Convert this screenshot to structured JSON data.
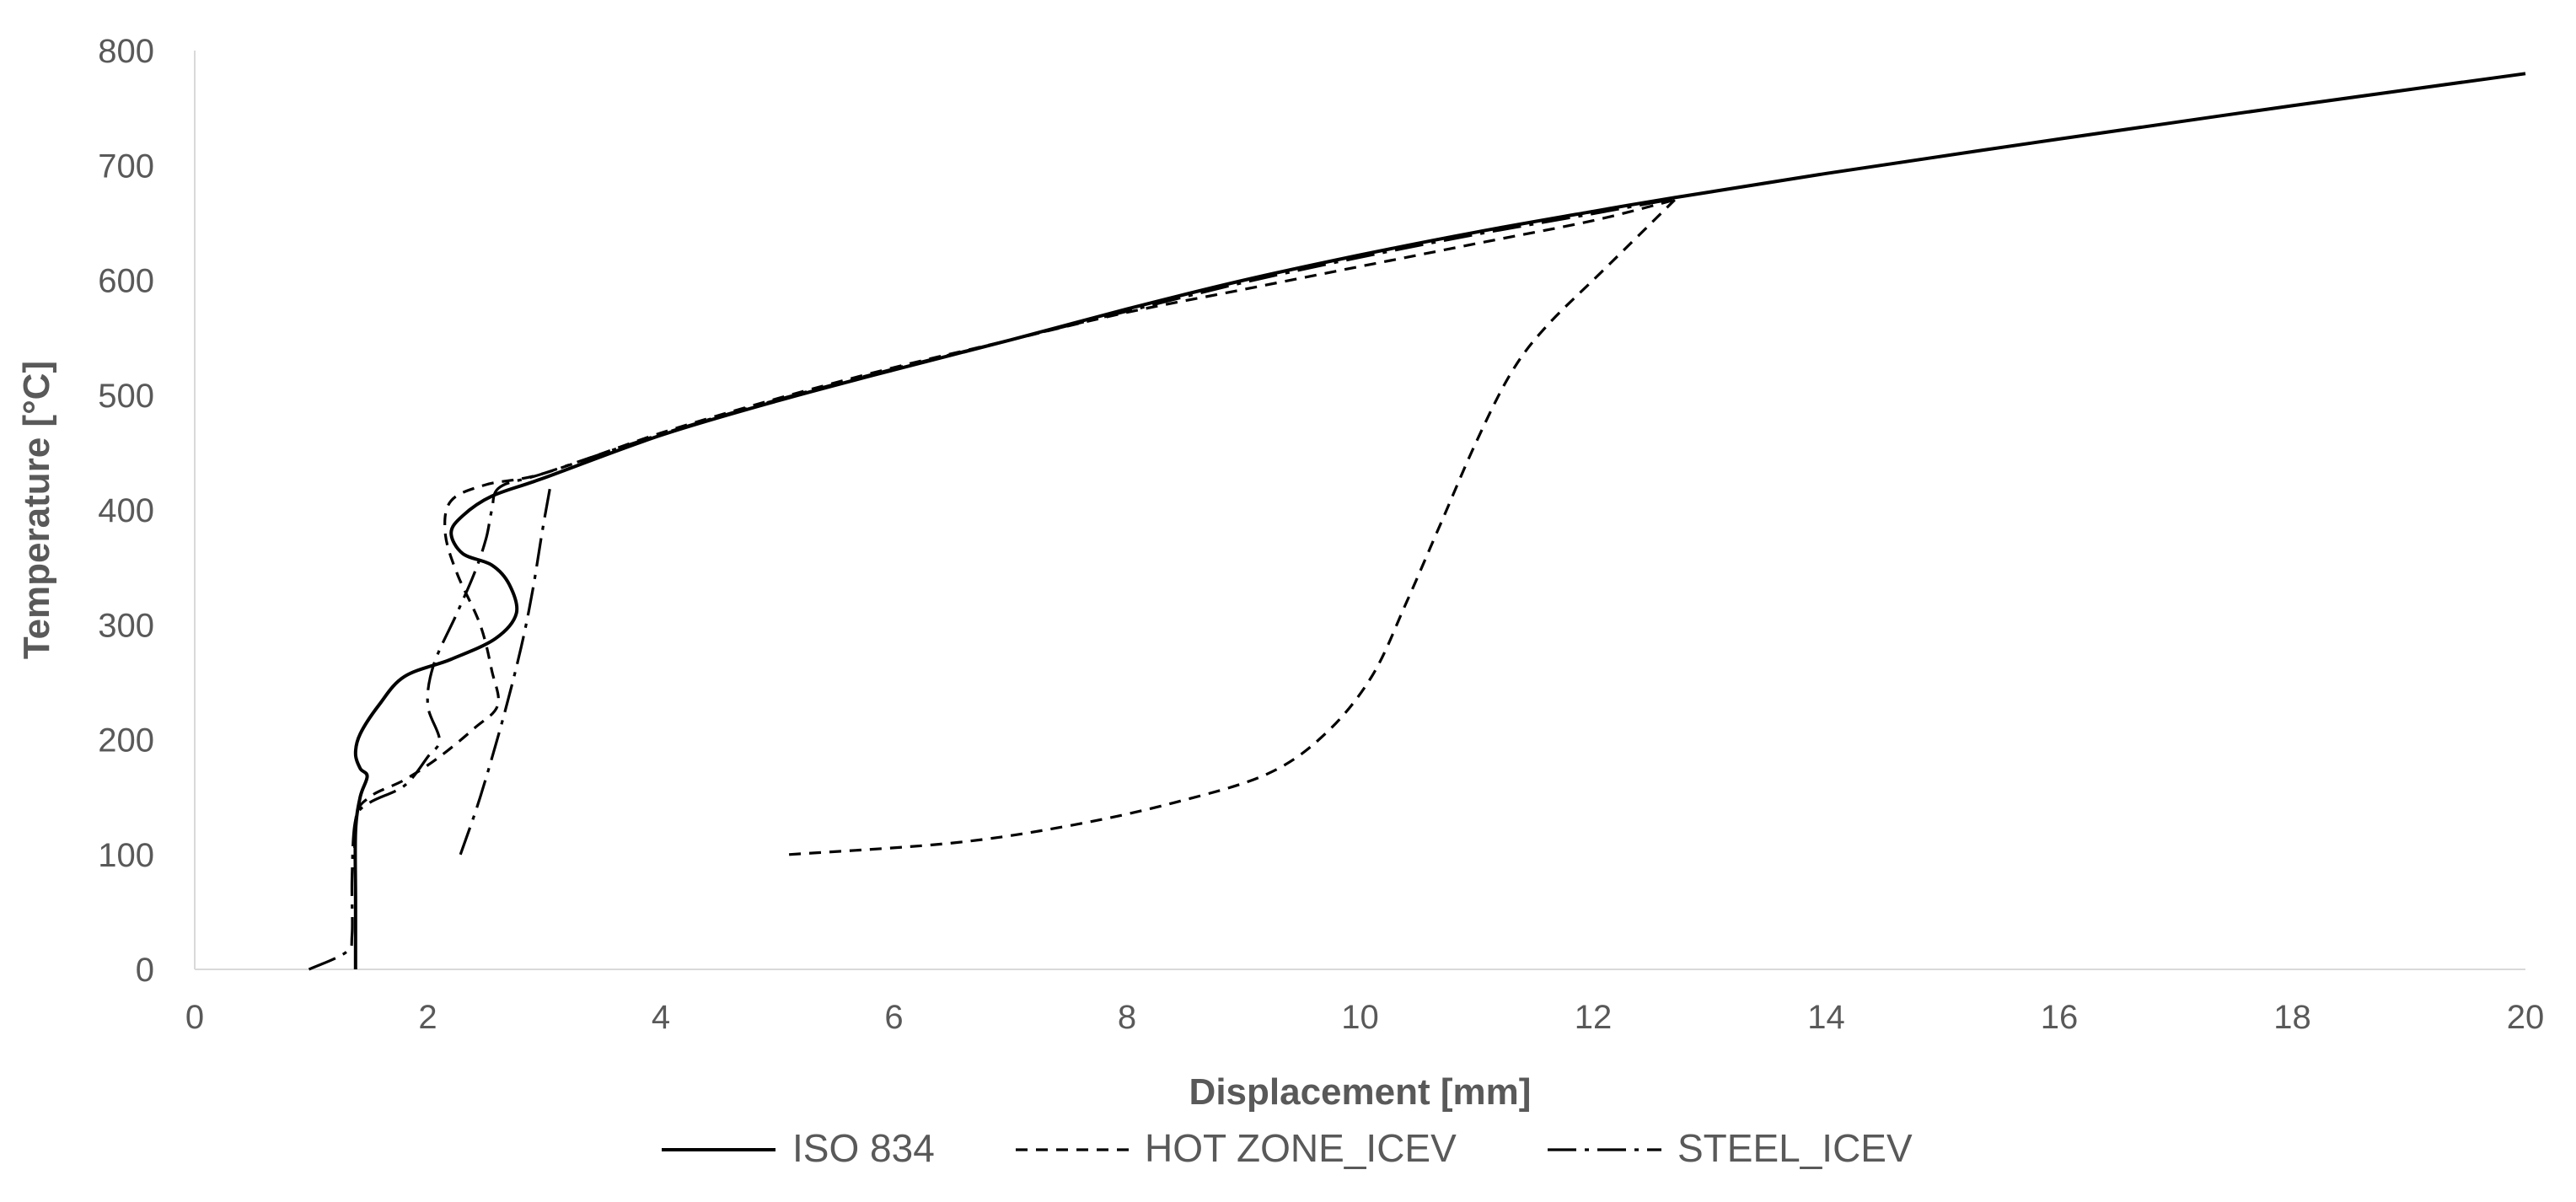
{
  "chart_data": {
    "type": "line",
    "title": "",
    "xlabel": "Displacement [mm]",
    "ylabel": "Temperature [°C]",
    "xlim": [
      0,
      20
    ],
    "ylim": [
      0,
      800
    ],
    "x_ticks": [
      0,
      2,
      4,
      6,
      8,
      10,
      12,
      14,
      16,
      18,
      20
    ],
    "y_ticks": [
      0,
      100,
      200,
      300,
      400,
      500,
      600,
      700,
      800
    ],
    "grid": false,
    "legend_position": "bottom",
    "series": [
      {
        "name": "ISO 834",
        "line_style": "solid",
        "color": "#000000",
        "points": [
          [
            1.38,
            0
          ],
          [
            1.38,
            60
          ],
          [
            1.38,
            120
          ],
          [
            1.42,
            150
          ],
          [
            1.48,
            168
          ],
          [
            1.42,
            175
          ],
          [
            1.38,
            188
          ],
          [
            1.42,
            205
          ],
          [
            1.58,
            230
          ],
          [
            1.8,
            255
          ],
          [
            2.2,
            270
          ],
          [
            2.58,
            288
          ],
          [
            2.76,
            310
          ],
          [
            2.7,
            335
          ],
          [
            2.55,
            352
          ],
          [
            2.3,
            362
          ],
          [
            2.2,
            380
          ],
          [
            2.3,
            395
          ],
          [
            2.55,
            412
          ],
          [
            3.0,
            428
          ],
          [
            4.0,
            465
          ],
          [
            5.0,
            495
          ],
          [
            6.0,
            522
          ],
          [
            7.0,
            548
          ],
          [
            8.0,
            575
          ],
          [
            9.0,
            600
          ],
          [
            10.0,
            622
          ],
          [
            11.0,
            642
          ],
          [
            12.0,
            660
          ],
          [
            12.7,
            672
          ],
          [
            14.0,
            693
          ],
          [
            16.0,
            723
          ],
          [
            18.0,
            752
          ],
          [
            20.0,
            780
          ]
        ]
      },
      {
        "name": "HOT ZONE_ICEV",
        "line_style": "dashed",
        "color": "#000000",
        "points_branch_a": [
          [
            1.38,
            0
          ],
          [
            1.38,
            70
          ],
          [
            1.38,
            130
          ],
          [
            1.5,
            150
          ],
          [
            1.8,
            165
          ],
          [
            2.1,
            185
          ],
          [
            2.4,
            210
          ],
          [
            2.6,
            230
          ],
          [
            2.55,
            260
          ],
          [
            2.45,
            300
          ],
          [
            2.25,
            345
          ],
          [
            2.15,
            380
          ],
          [
            2.2,
            408
          ],
          [
            2.5,
            422
          ],
          [
            3.0,
            432
          ],
          [
            4.0,
            467
          ],
          [
            5.0,
            497
          ],
          [
            6.0,
            524
          ],
          [
            7.0,
            548
          ],
          [
            8.0,
            572
          ],
          [
            9.0,
            592
          ],
          [
            10.0,
            612
          ],
          [
            11.0,
            632
          ],
          [
            12.0,
            652
          ],
          [
            12.7,
            670
          ]
        ],
        "points_branch_b": [
          [
            5.1,
            100
          ],
          [
            6.5,
            110
          ],
          [
            7.5,
            125
          ],
          [
            8.4,
            145
          ],
          [
            9.2,
            170
          ],
          [
            9.7,
            205
          ],
          [
            10.1,
            255
          ],
          [
            10.4,
            320
          ],
          [
            10.7,
            390
          ],
          [
            11.0,
            460
          ],
          [
            11.3,
            520
          ],
          [
            11.6,
            560
          ],
          [
            12.1,
            610
          ],
          [
            12.7,
            670
          ]
        ]
      },
      {
        "name": "STEEL_ICEV",
        "line_style": "dashdot",
        "color": "#000000",
        "points_branch_a": [
          [
            0.98,
            0
          ],
          [
            1.3,
            15
          ],
          [
            1.35,
            30
          ],
          [
            1.35,
            80
          ],
          [
            1.38,
            130
          ],
          [
            1.5,
            145
          ],
          [
            1.8,
            160
          ],
          [
            2.0,
            185
          ],
          [
            2.1,
            200
          ],
          [
            2.0,
            230
          ],
          [
            2.05,
            265
          ],
          [
            2.25,
            310
          ],
          [
            2.4,
            345
          ],
          [
            2.5,
            375
          ],
          [
            2.55,
            400
          ],
          [
            2.62,
            420
          ],
          [
            3.0,
            432
          ],
          [
            4.0,
            466
          ],
          [
            5.0,
            496
          ],
          [
            6.0,
            523
          ],
          [
            7.0,
            548
          ],
          [
            8.0,
            573
          ],
          [
            9.0,
            598
          ],
          [
            10.0,
            620
          ],
          [
            11.0,
            640
          ],
          [
            12.0,
            658
          ],
          [
            12.7,
            671
          ]
        ],
        "points_branch_b": [
          [
            2.28,
            100
          ],
          [
            2.45,
            150
          ],
          [
            2.65,
            220
          ],
          [
            2.8,
            280
          ],
          [
            2.9,
            330
          ],
          [
            2.98,
            380
          ],
          [
            3.05,
            420
          ]
        ]
      }
    ]
  }
}
